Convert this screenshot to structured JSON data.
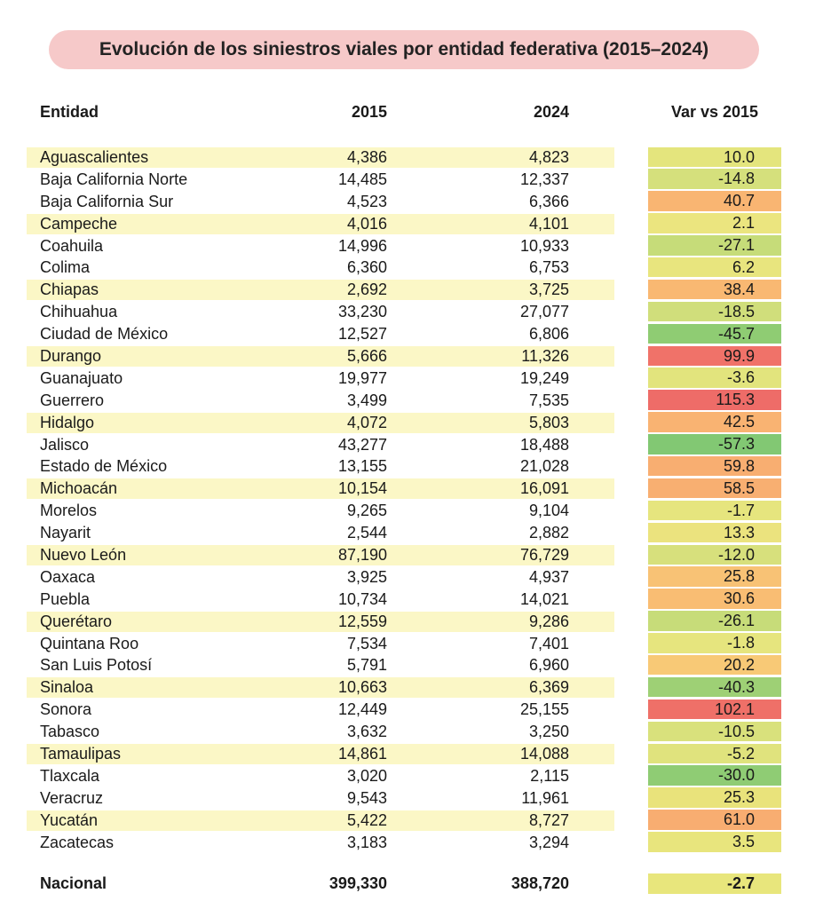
{
  "title": "Evolución de los siniestros viales por entidad federativa (2015–2024)",
  "columns": {
    "entidad": "Entidad",
    "y2015": "2015",
    "y2024": "2024",
    "var": "Var vs 2015"
  },
  "rows": [
    {
      "entidad": "Aguascalientes",
      "v2015": "4,386",
      "v2024": "4,823",
      "var": "10.0",
      "color": "#e4e57d"
    },
    {
      "entidad": "Baja California Norte",
      "v2015": "14,485",
      "v2024": "12,337",
      "var": "-14.8",
      "color": "#d5e07c"
    },
    {
      "entidad": "Baja California Sur",
      "v2015": "4,523",
      "v2024": "6,366",
      "var": "40.7",
      "color": "#f9b572"
    },
    {
      "entidad": "Campeche",
      "v2015": "4,016",
      "v2024": "4,101",
      "var": "2.1",
      "color": "#ebe57f"
    },
    {
      "entidad": "Coahuila",
      "v2015": "14,996",
      "v2024": "10,933",
      "var": "-27.1",
      "color": "#c6dc79"
    },
    {
      "entidad": "Colima",
      "v2015": "6,360",
      "v2024": "6,753",
      "var": "6.2",
      "color": "#e8e57e"
    },
    {
      "entidad": "Chiapas",
      "v2015": "2,692",
      "v2024": "3,725",
      "var": "38.4",
      "color": "#f9b872"
    },
    {
      "entidad": "Chihuahua",
      "v2015": "33,230",
      "v2024": "27,077",
      "var": "-18.5",
      "color": "#d0de7b"
    },
    {
      "entidad": "Ciudad de México",
      "v2015": "12,527",
      "v2024": "6,806",
      "var": "-45.7",
      "color": "#8fcc73"
    },
    {
      "entidad": "Durango",
      "v2015": "5,666",
      "v2024": "11,326",
      "var": "99.9",
      "color": "#f07269"
    },
    {
      "entidad": "Guanajuato",
      "v2015": "19,977",
      "v2024": "19,249",
      "var": "-3.6",
      "color": "#e2e47d"
    },
    {
      "entidad": "Guerrero",
      "v2015": "3,499",
      "v2024": "7,535",
      "var": "115.3",
      "color": "#ee6c68"
    },
    {
      "entidad": "Hidalgo",
      "v2015": "4,072",
      "v2024": "5,803",
      "var": "42.5",
      "color": "#f9b372"
    },
    {
      "entidad": "Jalisco",
      "v2015": "43,277",
      "v2024": "18,488",
      "var": "-57.3",
      "color": "#82c873"
    },
    {
      "entidad": "Estado de México",
      "v2015": "13,155",
      "v2024": "21,028",
      "var": "59.8",
      "color": "#f8ae71"
    },
    {
      "entidad": "Michoacán",
      "v2015": "10,154",
      "v2024": "16,091",
      "var": "58.5",
      "color": "#f8af71"
    },
    {
      "entidad": "Morelos",
      "v2015": "9,265",
      "v2024": "9,104",
      "var": "-1.7",
      "color": "#e6e57e"
    },
    {
      "entidad": "Nayarit",
      "v2015": "2,544",
      "v2024": "2,882",
      "var": "13.3",
      "color": "#ebe37e"
    },
    {
      "entidad": "Nuevo León",
      "v2015": "87,190",
      "v2024": "76,729",
      "var": "-12.0",
      "color": "#d7e07c"
    },
    {
      "entidad": "Oaxaca",
      "v2015": "3,925",
      "v2024": "4,937",
      "var": "25.8",
      "color": "#f8c275"
    },
    {
      "entidad": "Puebla",
      "v2015": "10,734",
      "v2024": "14,021",
      "var": "30.6",
      "color": "#f9bd73"
    },
    {
      "entidad": "Querétaro",
      "v2015": "12,559",
      "v2024": "9,286",
      "var": "-26.1",
      "color": "#c7dc79"
    },
    {
      "entidad": "Quintana Roo",
      "v2015": "7,534",
      "v2024": "7,401",
      "var": "-1.8",
      "color": "#e6e57e"
    },
    {
      "entidad": "San Luis Potosí",
      "v2015": "5,791",
      "v2024": "6,960",
      "var": "20.2",
      "color": "#f8c976"
    },
    {
      "entidad": "Sinaloa",
      "v2015": "10,663",
      "v2024": "6,369",
      "var": "-40.3",
      "color": "#9ed075"
    },
    {
      "entidad": "Sonora",
      "v2015": "12,449",
      "v2024": "25,155",
      "var": "102.1",
      "color": "#ef7068"
    },
    {
      "entidad": "Tabasco",
      "v2015": "3,632",
      "v2024": "3,250",
      "var": "-10.5",
      "color": "#d9e17c"
    },
    {
      "entidad": "Tamaulipas",
      "v2015": "14,861",
      "v2024": "14,088",
      "var": "-5.2",
      "color": "#e0e37d"
    },
    {
      "entidad": "Tlaxcala",
      "v2015": "3,020",
      "v2024": "2,115",
      "var": "-30.0",
      "color": "#8fcc74"
    },
    {
      "entidad": "Veracruz",
      "v2015": "9,543",
      "v2024": "11,961",
      "var": "25.3",
      "color": "#e9e37b"
    },
    {
      "entidad": "Yucatán",
      "v2015": "5,422",
      "v2024": "8,727",
      "var": "61.0",
      "color": "#f8ad71"
    },
    {
      "entidad": "Zacatecas",
      "v2015": "3,183",
      "v2024": "3,294",
      "var": "3.5",
      "color": "#e8e57d"
    }
  ],
  "national": {
    "entidad": "Nacional",
    "v2015": "399,330",
    "v2024": "388,720",
    "var": "-2.7"
  }
}
